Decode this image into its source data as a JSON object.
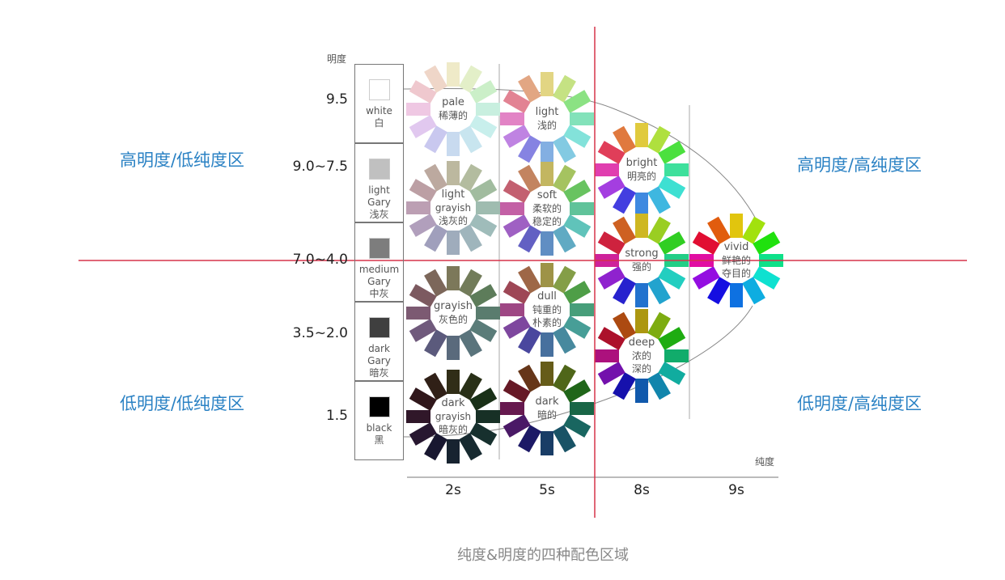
{
  "axis": {
    "lightness_title": "明度",
    "saturation_title": "纯度"
  },
  "lightness_levels": [
    "9.5",
    "9.0~7.5",
    "7.0~4.0",
    "3.5~2.0",
    "1.5"
  ],
  "saturation_levels": [
    "2s",
    "5s",
    "8s",
    "9s"
  ],
  "grays": [
    {
      "en": "white",
      "zh": "白",
      "color": "#ffffff"
    },
    {
      "en": "light Gary",
      "zh": "浅灰",
      "color": "#c0c0c0"
    },
    {
      "en": "medium Gary",
      "zh": "中灰",
      "color": "#7d7d7d"
    },
    {
      "en": "dark Gary",
      "zh": "暗灰",
      "color": "#3f3f3f"
    },
    {
      "en": "black",
      "zh": "黑",
      "color": "#000000"
    }
  ],
  "quadrants": {
    "top_left": "高明度/低纯度区",
    "top_right": "高明度/高纯度区",
    "bottom_left": "低明度/低纯度区",
    "bottom_right": "低明度/高纯度区"
  },
  "caption": "纯度&明度的四种配色区域",
  "tones": [
    {
      "id": "pale",
      "lines": [
        "pale",
        "稀薄的"
      ],
      "s": 55,
      "l": 86
    },
    {
      "id": "light",
      "lines": [
        "light",
        "浅的"
      ],
      "s": 62,
      "l": 70
    },
    {
      "id": "light-grayish",
      "lines": [
        "light",
        "grayish",
        "浅灰的"
      ],
      "s": 18,
      "l": 68
    },
    {
      "id": "soft",
      "lines": [
        "soft",
        "柔软的",
        "稳定的"
      ],
      "s": 45,
      "l": 57
    },
    {
      "id": "grayish",
      "lines": [
        "grayish",
        "灰色的"
      ],
      "s": 16,
      "l": 42
    },
    {
      "id": "dull",
      "lines": [
        "dull",
        "钝重的",
        "朴素的"
      ],
      "s": 38,
      "l": 45
    },
    {
      "id": "dark-grayish",
      "lines": [
        "dark",
        "grayish",
        "暗灰的"
      ],
      "s": 35,
      "l": 14
    },
    {
      "id": "dark",
      "lines": [
        "dark",
        "暗的"
      ],
      "s": 60,
      "l": 25
    },
    {
      "id": "bright",
      "lines": [
        "bright",
        "明亮的"
      ],
      "s": 72,
      "l": 56
    },
    {
      "id": "strong",
      "lines": [
        "strong",
        "强的"
      ],
      "s": 72,
      "l": 47
    },
    {
      "id": "vivid",
      "lines": [
        "vivid",
        "鲜艳的",
        "夺目的"
      ],
      "s": 88,
      "l": 47
    },
    {
      "id": "deep",
      "lines": [
        "deep",
        "浓的",
        "深的"
      ],
      "s": 82,
      "l": 37
    }
  ],
  "hues": [
    52,
    78,
    115,
    155,
    175,
    195,
    212,
    242,
    278,
    318,
    350,
    22
  ],
  "colors": {
    "divider": "#d6334a",
    "quadrant_text": "#2b82c4"
  }
}
